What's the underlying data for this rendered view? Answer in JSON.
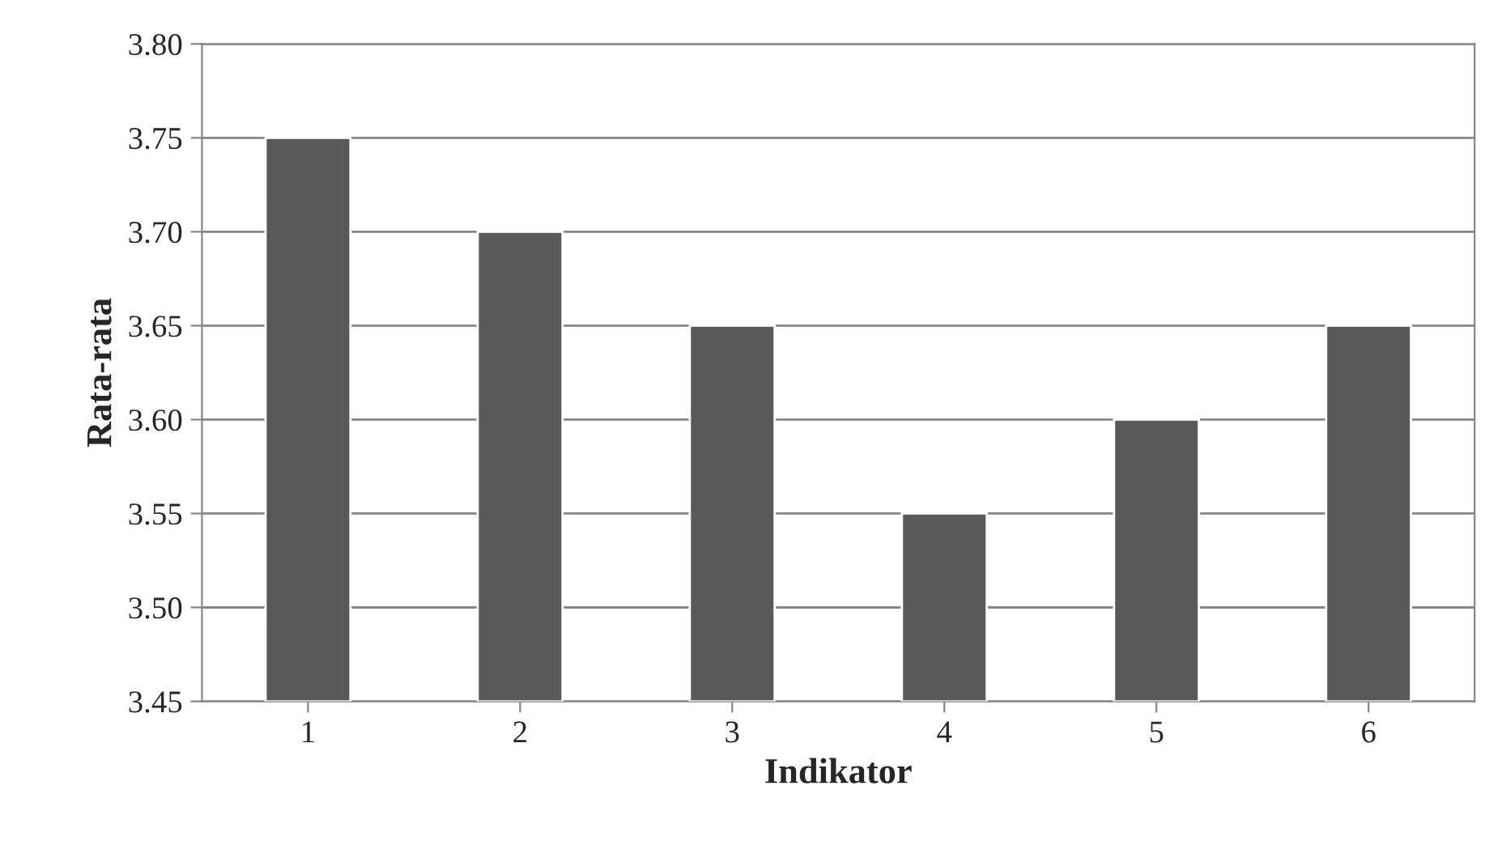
{
  "chart_data": {
    "type": "bar",
    "xlabel": "Indikator",
    "ylabel": "Rata-rata",
    "categories": [
      "1",
      "2",
      "3",
      "4",
      "5",
      "6"
    ],
    "values": [
      3.75,
      3.7,
      3.65,
      3.55,
      3.6,
      3.65
    ],
    "color": "#595959",
    "ylim": [
      3.45,
      3.8
    ],
    "yticks": [
      {
        "value": 3.45,
        "label": "3.45"
      },
      {
        "value": 3.5,
        "label": "3.50"
      },
      {
        "value": 3.55,
        "label": "3.55"
      },
      {
        "value": 3.6,
        "label": "3.60"
      },
      {
        "value": 3.65,
        "label": "3.65"
      },
      {
        "value": 3.7,
        "label": "3.70"
      },
      {
        "value": 3.75,
        "label": "3.75"
      },
      {
        "value": 3.8,
        "label": "3.80"
      }
    ],
    "grid": "y",
    "legend": false
  }
}
